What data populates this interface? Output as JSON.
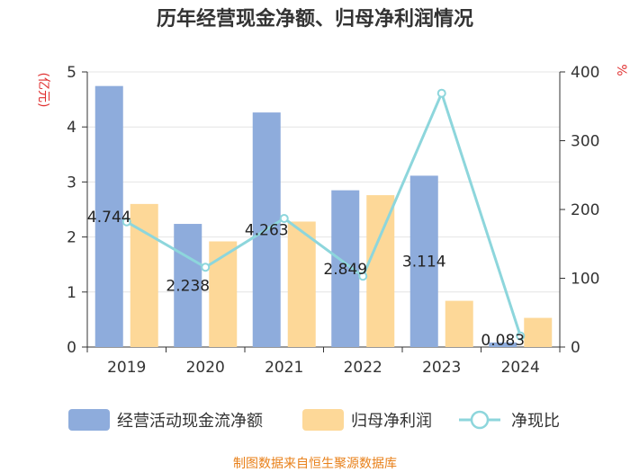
{
  "chart_data": {
    "type": "bar",
    "title": "历年经营现金净额、归母净利润情况",
    "categories": [
      "2019",
      "2020",
      "2021",
      "2022",
      "2023",
      "2024"
    ],
    "series": [
      {
        "name": "经营活动现金流净额",
        "type": "bar",
        "axis": "left",
        "values": [
          4.744,
          2.238,
          4.263,
          2.849,
          3.114,
          0.083
        ],
        "color": "#8eacdc"
      },
      {
        "name": "归母净利润",
        "type": "bar",
        "axis": "left",
        "values": [
          2.6,
          1.92,
          2.28,
          2.76,
          0.84,
          0.53
        ],
        "color": "#fdd898"
      },
      {
        "name": "净现比",
        "type": "line",
        "axis": "right",
        "values": [
          182,
          116,
          187,
          103,
          369,
          16
        ],
        "color": "#8dd6dc"
      }
    ],
    "data_labels": [
      "4.744",
      "2.238",
      "4.263",
      "2.849",
      "3.114",
      "0.083"
    ],
    "y_left": {
      "label": "(亿元)",
      "min": 0,
      "max": 5,
      "ticks": [
        "0",
        "1",
        "2",
        "3",
        "4",
        "5"
      ]
    },
    "y_right": {
      "label": "%",
      "min": 0,
      "max": 400,
      "ticks": [
        "0",
        "100",
        "200",
        "300",
        "400"
      ]
    },
    "grid": true,
    "legend": "bottom",
    "source": "制图数据来自恒生聚源数据库"
  }
}
